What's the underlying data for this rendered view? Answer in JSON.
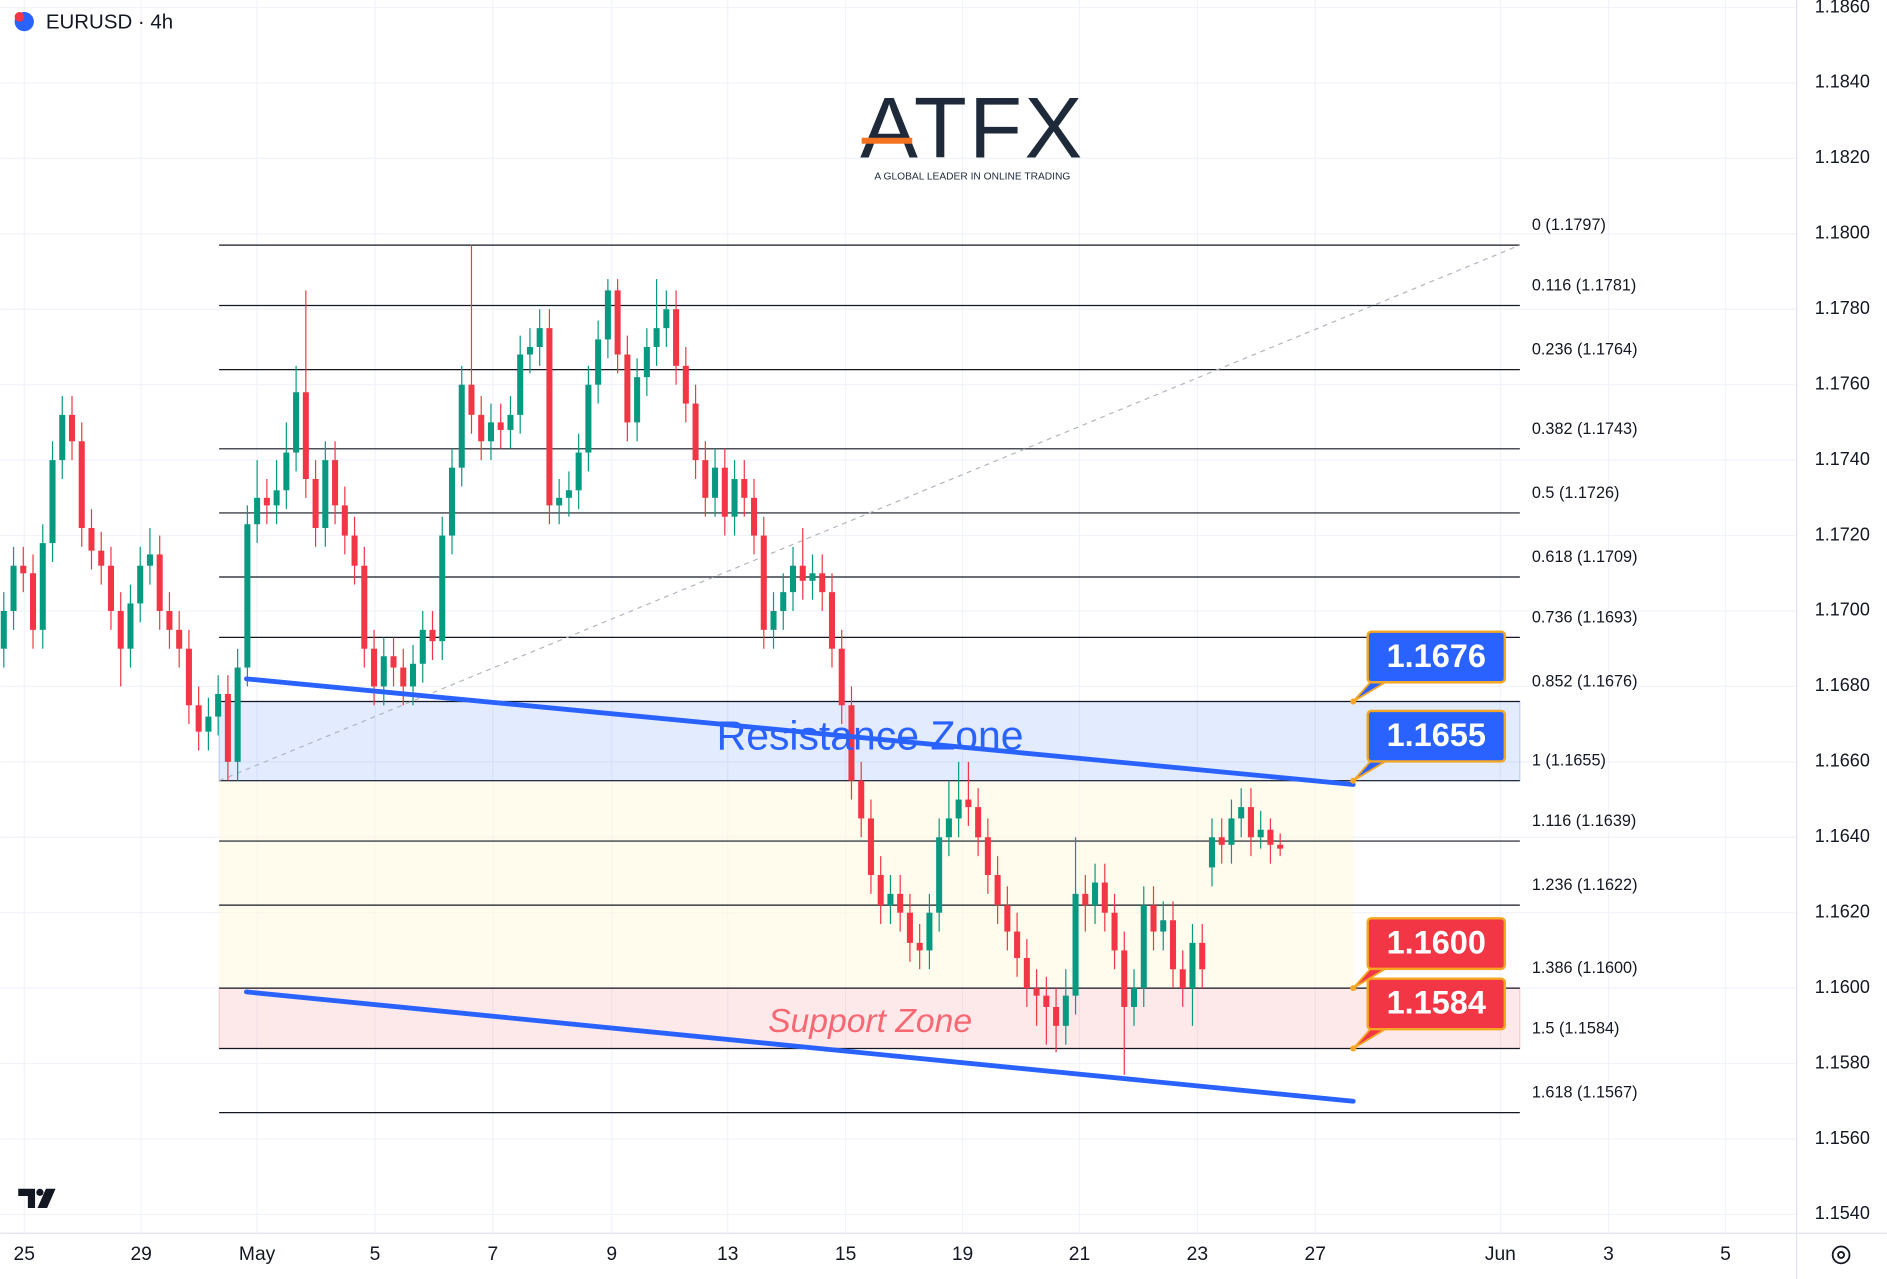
{
  "header": {
    "symbol": "EURUSD · 4h"
  },
  "logo": {
    "name": "ATFX",
    "tagline": "A GLOBAL LEADER IN ONLINE TRADING"
  },
  "chart_data": {
    "type": "candlestick",
    "open": [
      1.169,
      1.17,
      1.1712,
      1.171,
      1.1695,
      1.1718,
      1.174,
      1.1752,
      1.1745,
      1.1722,
      1.1716,
      1.1712,
      1.17,
      1.169,
      1.1702,
      1.1712,
      1.1715,
      1.17,
      1.1695,
      1.169,
      1.1675,
      1.1668,
      1.1672,
      1.1678,
      1.166,
      1.1685,
      1.1723,
      1.173,
      1.1728,
      1.1732,
      1.1742,
      1.1758,
      1.1735,
      1.1722,
      1.174,
      1.1728,
      1.172,
      1.1712,
      1.169,
      1.168,
      1.1688,
      1.1685,
      1.168,
      1.1686,
      1.1695,
      1.1692,
      1.172,
      1.1738,
      1.176,
      1.1752,
      1.1745,
      1.175,
      1.1748,
      1.1752,
      1.1768,
      1.177,
      1.1775,
      1.1728,
      1.173,
      1.1732,
      1.1742,
      1.176,
      1.1772,
      1.1785,
      1.1768,
      1.175,
      1.1762,
      1.177,
      1.1775,
      1.178,
      1.1765,
      1.1755,
      1.174,
      1.173,
      1.1738,
      1.1725,
      1.1735,
      1.173,
      1.172,
      1.1695,
      1.17,
      1.1705,
      1.1712,
      1.1708,
      1.171,
      1.1705,
      1.169,
      1.1675,
      1.1655,
      1.1645,
      1.163,
      1.1622,
      1.1625,
      1.162,
      1.1612,
      1.161,
      1.162,
      1.164,
      1.1645,
      1.165,
      1.1648,
      1.164,
      1.163,
      1.1622,
      1.1615,
      1.1608,
      1.16,
      1.1598,
      1.1595,
      1.159,
      1.1598,
      1.1625,
      1.1622,
      1.1628,
      1.162,
      1.161,
      1.1595,
      1.16,
      1.1622,
      1.1615,
      1.1618,
      1.1605,
      1.16,
      1.1612,
      1.1632,
      1.164,
      1.1638,
      1.1645,
      1.1648,
      1.164,
      1.1642,
      1.1638
    ],
    "high": [
      1.1705,
      1.1717,
      1.1717,
      1.1715,
      1.1723,
      1.1745,
      1.1757,
      1.1757,
      1.175,
      1.1727,
      1.1721,
      1.1717,
      1.1705,
      1.1707,
      1.1717,
      1.1722,
      1.172,
      1.1705,
      1.17,
      1.1695,
      1.168,
      1.1677,
      1.1683,
      1.1683,
      1.169,
      1.1728,
      1.174,
      1.1735,
      1.174,
      1.175,
      1.1765,
      1.1785,
      1.174,
      1.1745,
      1.1745,
      1.1733,
      1.1725,
      1.1717,
      1.1695,
      1.1693,
      1.1693,
      1.169,
      1.1691,
      1.17,
      1.17,
      1.1725,
      1.1743,
      1.1765,
      1.1797,
      1.1757,
      1.1755,
      1.1755,
      1.1757,
      1.1773,
      1.1775,
      1.178,
      1.178,
      1.1735,
      1.1737,
      1.1747,
      1.1765,
      1.1777,
      1.1788,
      1.1788,
      1.1773,
      1.1767,
      1.1775,
      1.1788,
      1.1785,
      1.1785,
      1.177,
      1.176,
      1.1745,
      1.1743,
      1.1743,
      1.174,
      1.174,
      1.1735,
      1.1725,
      1.1705,
      1.171,
      1.1717,
      1.1722,
      1.1715,
      1.1715,
      1.171,
      1.1695,
      1.168,
      1.166,
      1.165,
      1.1635,
      1.163,
      1.163,
      1.1625,
      1.1617,
      1.1625,
      1.1645,
      1.1655,
      1.166,
      1.166,
      1.1653,
      1.1645,
      1.1635,
      1.1627,
      1.162,
      1.1613,
      1.1605,
      1.1603,
      1.16,
      1.1605,
      1.164,
      1.163,
      1.1633,
      1.1633,
      1.1625,
      1.1615,
      1.1605,
      1.1627,
      1.1627,
      1.1623,
      1.1623,
      1.161,
      1.1617,
      1.1617,
      1.1645,
      1.1645,
      1.165,
      1.1653,
      1.1653,
      1.1647,
      1.1645,
      1.1641
    ],
    "low": [
      1.1685,
      1.1695,
      1.1705,
      1.169,
      1.169,
      1.1713,
      1.1735,
      1.174,
      1.1717,
      1.1711,
      1.1707,
      1.1695,
      1.168,
      1.1685,
      1.1697,
      1.1707,
      1.1695,
      1.169,
      1.1685,
      1.167,
      1.1663,
      1.1663,
      1.1667,
      1.1655,
      1.1655,
      1.168,
      1.1718,
      1.1723,
      1.1723,
      1.1727,
      1.1737,
      1.173,
      1.1717,
      1.1717,
      1.1723,
      1.1715,
      1.1707,
      1.1685,
      1.1675,
      1.1675,
      1.168,
      1.1675,
      1.1675,
      1.1681,
      1.1687,
      1.1687,
      1.1715,
      1.1733,
      1.1747,
      1.174,
      1.174,
      1.1743,
      1.1743,
      1.1747,
      1.1763,
      1.1765,
      1.1723,
      1.1723,
      1.1725,
      1.1727,
      1.1737,
      1.1755,
      1.1767,
      1.1763,
      1.1745,
      1.1745,
      1.1757,
      1.1765,
      1.177,
      1.176,
      1.175,
      1.1735,
      1.1725,
      1.1725,
      1.172,
      1.172,
      1.1725,
      1.1715,
      1.169,
      1.169,
      1.1695,
      1.17,
      1.1703,
      1.1703,
      1.17,
      1.1685,
      1.167,
      1.165,
      1.164,
      1.1625,
      1.1617,
      1.1617,
      1.1615,
      1.1607,
      1.1605,
      1.1605,
      1.1615,
      1.1635,
      1.164,
      1.1643,
      1.1635,
      1.1625,
      1.1617,
      1.161,
      1.1603,
      1.1595,
      1.159,
      1.1585,
      1.1583,
      1.1585,
      1.1593,
      1.1615,
      1.1617,
      1.1615,
      1.1605,
      1.1577,
      1.159,
      1.1595,
      1.161,
      1.161,
      1.16,
      1.1595,
      1.159,
      1.16,
      1.1627,
      1.1633,
      1.1633,
      1.164,
      1.1635,
      1.1637,
      1.1633,
      1.1635
    ],
    "close": [
      1.17,
      1.1712,
      1.171,
      1.1695,
      1.1718,
      1.174,
      1.1752,
      1.1745,
      1.1722,
      1.1716,
      1.1712,
      1.17,
      1.169,
      1.1702,
      1.1712,
      1.1715,
      1.17,
      1.1695,
      1.169,
      1.1675,
      1.1668,
      1.1672,
      1.1678,
      1.166,
      1.1685,
      1.1723,
      1.173,
      1.1728,
      1.1732,
      1.1742,
      1.1758,
      1.1735,
      1.1722,
      1.174,
      1.1728,
      1.172,
      1.1712,
      1.169,
      1.168,
      1.1688,
      1.1685,
      1.168,
      1.1686,
      1.1695,
      1.1692,
      1.172,
      1.1738,
      1.176,
      1.1752,
      1.1745,
      1.175,
      1.1748,
      1.1752,
      1.1768,
      1.177,
      1.1775,
      1.1728,
      1.173,
      1.1732,
      1.1742,
      1.176,
      1.1772,
      1.1785,
      1.1768,
      1.175,
      1.1762,
      1.177,
      1.1775,
      1.178,
      1.1765,
      1.1755,
      1.174,
      1.173,
      1.1738,
      1.1725,
      1.1735,
      1.173,
      1.172,
      1.1695,
      1.17,
      1.1705,
      1.1712,
      1.1708,
      1.171,
      1.1705,
      1.169,
      1.1675,
      1.1655,
      1.1645,
      1.163,
      1.1622,
      1.1625,
      1.162,
      1.1612,
      1.161,
      1.162,
      1.164,
      1.1645,
      1.165,
      1.1648,
      1.164,
      1.163,
      1.1622,
      1.1615,
      1.1608,
      1.16,
      1.1598,
      1.1595,
      1.159,
      1.1598,
      1.1625,
      1.1622,
      1.1628,
      1.162,
      1.161,
      1.1595,
      1.16,
      1.1622,
      1.1615,
      1.1618,
      1.1605,
      1.16,
      1.1612,
      1.1605,
      1.164,
      1.1638,
      1.1645,
      1.1648,
      1.164,
      1.1642,
      1.1638,
      1.1637
    ],
    "up_color": "#089981",
    "down_color": "#f23645",
    "xlim": [
      -0.37,
      184
    ],
    "xticks": [
      {
        "value": 2.1,
        "label": "25"
      },
      {
        "value": 14.1,
        "label": "29"
      },
      {
        "value": 26.0,
        "label": "May"
      },
      {
        "value": 38.1,
        "label": "5"
      },
      {
        "value": 50.2,
        "label": "7"
      },
      {
        "value": 62.4,
        "label": "9"
      },
      {
        "value": 74.3,
        "label": "13"
      },
      {
        "value": 86.4,
        "label": "15"
      },
      {
        "value": 98.4,
        "label": "19"
      },
      {
        "value": 110.4,
        "label": "21"
      },
      {
        "value": 122.5,
        "label": "23"
      },
      {
        "value": 134.6,
        "label": "27"
      },
      {
        "value": 153.6,
        "label": "Jun"
      },
      {
        "value": 164.7,
        "label": "3"
      },
      {
        "value": 176.7,
        "label": "5"
      }
    ],
    "ylim": [
      1.1535,
      1.1862
    ],
    "yticks": [
      {
        "value": 1.154,
        "label": "1.1540"
      },
      {
        "value": 1.156,
        "label": "1.1560"
      },
      {
        "value": 1.158,
        "label": "1.1580"
      },
      {
        "value": 1.16,
        "label": "1.1600"
      },
      {
        "value": 1.162,
        "label": "1.1620"
      },
      {
        "value": 1.164,
        "label": "1.1640"
      },
      {
        "value": 1.166,
        "label": "1.1660"
      },
      {
        "value": 1.168,
        "label": "1.1680"
      },
      {
        "value": 1.17,
        "label": "1.1700"
      },
      {
        "value": 1.172,
        "label": "1.1720"
      },
      {
        "value": 1.174,
        "label": "1.1740"
      },
      {
        "value": 1.176,
        "label": "1.1760"
      },
      {
        "value": 1.178,
        "label": "1.1780"
      },
      {
        "value": 1.18,
        "label": "1.1800"
      },
      {
        "value": 1.182,
        "label": "1.1820"
      },
      {
        "value": 1.184,
        "label": "1.1840"
      },
      {
        "value": 1.186,
        "label": "1.1860"
      }
    ],
    "grid": true,
    "fibonacci": {
      "x": [
        22.1,
        155.6
      ],
      "levels": [
        {
          "label": "0 (1.1797)",
          "price": 1.1797
        },
        {
          "label": "0.116 (1.1781)",
          "price": 1.1781
        },
        {
          "label": "0.236 (1.1764)",
          "price": 1.1764
        },
        {
          "label": "0.382 (1.1743)",
          "price": 1.1743
        },
        {
          "label": "0.5 (1.1726)",
          "price": 1.1726
        },
        {
          "label": "0.618 (1.1709)",
          "price": 1.1709
        },
        {
          "label": "0.736 (1.1693)",
          "price": 1.1693
        },
        {
          "label": "0.852 (1.1676)",
          "price": 1.1676
        },
        {
          "label": "1 (1.1655)",
          "price": 1.1655
        },
        {
          "label": "1.116 (1.1639)",
          "price": 1.1639
        },
        {
          "label": "1.236 (1.1622)",
          "price": 1.1622
        },
        {
          "label": "1.386 (1.1600)",
          "price": 1.16
        },
        {
          "label": "1.5 (1.1584)",
          "price": 1.1584
        },
        {
          "label": "1.618 (1.1567)",
          "price": 1.1567
        }
      ]
    },
    "zones": [
      {
        "name": "Resistance Zone",
        "low": 1.1655,
        "high": 1.1676,
        "color": "#2962ff"
      },
      {
        "name": "Support Zone",
        "low": 1.1584,
        "high": 1.16,
        "color": "#f7525f"
      }
    ],
    "trend_lines": [
      {
        "x": [
          24.9,
          138.5
        ],
        "y": [
          1.1682,
          1.1654
        ],
        "color": "#2962ff"
      },
      {
        "x": [
          24.9,
          138.5
        ],
        "y": [
          1.1599,
          1.157
        ],
        "color": "#2962ff"
      }
    ],
    "price_labels": [
      {
        "value": 1.1676,
        "label": "1.1676",
        "color": "#2962ff"
      },
      {
        "value": 1.1655,
        "label": "1.1655",
        "color": "#2962ff"
      },
      {
        "value": 1.16,
        "label": "1.1600",
        "color": "#f23645"
      },
      {
        "value": 1.1584,
        "label": "1.1584",
        "color": "#f23645"
      }
    ]
  }
}
